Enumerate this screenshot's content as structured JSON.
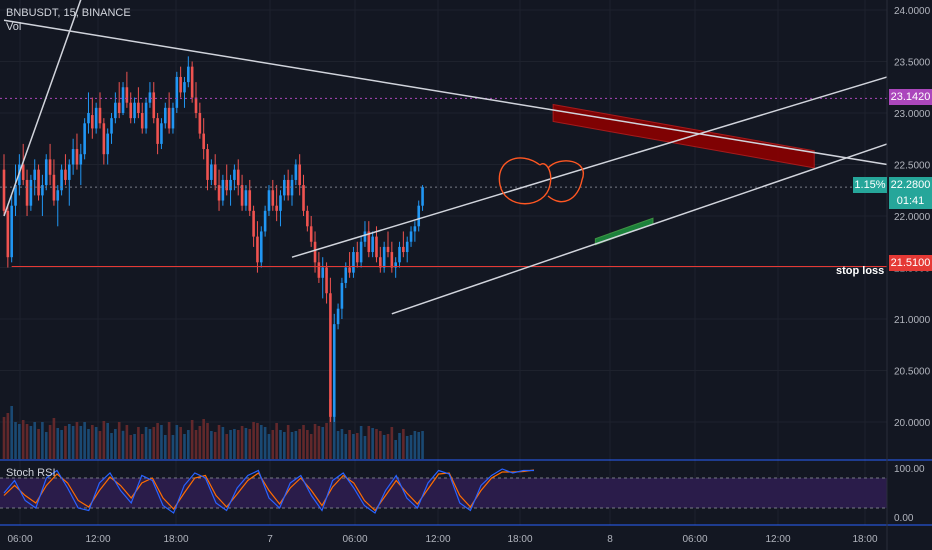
{
  "header": {
    "symbol_line": "BNBUSDT, 15, BINANCE",
    "volume_label": "Vol"
  },
  "rsi": {
    "label": "Stoch RSI",
    "axis": [
      "100.00",
      "0.00"
    ]
  },
  "price_axis": {
    "ticks": [
      "24.0000",
      "23.5000",
      "23.0000",
      "22.5000",
      "22.0000",
      "21.5000",
      "21.0000",
      "20.5000",
      "20.0000"
    ]
  },
  "time_axis": {
    "ticks": [
      "06:00",
      "12:00",
      "18:00",
      "7",
      "06:00",
      "12:00",
      "18:00",
      "8",
      "06:00",
      "12:00",
      "18:00"
    ]
  },
  "tags": {
    "purple_level": "23.1420",
    "current_price": "22.2800",
    "change_pct": "1.15%",
    "countdown": "01:41",
    "stop_level": "21.5100",
    "stop_text": "stop loss"
  },
  "colors": {
    "background": "#131722",
    "up": "#2196f3",
    "down": "#ef5350",
    "purple": "#ab47bc",
    "stop": "#e53935",
    "green": "#26a69a",
    "rsi_blue": "#2962ff",
    "rsi_orange": "#ff6d00"
  },
  "chart_data": {
    "type": "candlestick",
    "symbol": "BNBUSDT",
    "interval": "15",
    "exchange": "BINANCE",
    "y_range": [
      19.7,
      24.1
    ],
    "rsi_range": [
      0,
      100
    ],
    "levels": [
      {
        "name": "purple",
        "price": 23.142
      },
      {
        "name": "current",
        "price": 22.28
      },
      {
        "name": "stop loss",
        "price": 21.51
      }
    ],
    "trendlines": [
      {
        "name": "upper-descending",
        "from": {
          "i": 0,
          "p": 23.9
        },
        "to": {
          "i": 230,
          "p": 22.5
        }
      },
      {
        "name": "channel-upper",
        "from": {
          "i": 75,
          "p": 21.6
        },
        "to": {
          "i": 230,
          "p": 23.35
        }
      },
      {
        "name": "channel-lower",
        "from": {
          "i": 101,
          "p": 21.05
        },
        "to": {
          "i": 230,
          "p": 22.7
        }
      },
      {
        "name": "left-steep",
        "from": {
          "i": 0,
          "p": 22.0
        },
        "to": {
          "i": 20,
          "p": 24.1
        }
      }
    ],
    "zones": [
      {
        "name": "red-zone",
        "color": "#8b0000",
        "from": {
          "i": 143,
          "p": 23.0
        },
        "to": {
          "i": 211,
          "p": 22.55
        }
      },
      {
        "name": "green-zone",
        "color": "#1e8e3e",
        "from": {
          "i": 154,
          "p": 21.75
        },
        "to": {
          "i": 169,
          "p": 21.95
        }
      }
    ],
    "candles": [
      [
        22.45,
        22.6,
        22.0,
        22.05
      ],
      [
        22.05,
        22.1,
        21.5,
        21.6
      ],
      [
        21.6,
        22.2,
        21.55,
        22.1
      ],
      [
        22.1,
        22.5,
        22.0,
        22.3
      ],
      [
        22.3,
        22.6,
        22.2,
        22.5
      ],
      [
        22.5,
        22.7,
        22.3,
        22.35
      ],
      [
        22.35,
        22.45,
        22.0,
        22.1
      ],
      [
        22.1,
        22.4,
        22.05,
        22.35
      ],
      [
        22.35,
        22.55,
        22.2,
        22.45
      ],
      [
        22.45,
        22.5,
        22.15,
        22.2
      ],
      [
        22.2,
        22.4,
        22.0,
        22.3
      ],
      [
        22.3,
        22.6,
        22.25,
        22.55
      ],
      [
        22.55,
        22.7,
        22.3,
        22.4
      ],
      [
        22.4,
        22.55,
        22.1,
        22.15
      ],
      [
        22.15,
        22.3,
        21.9,
        22.25
      ],
      [
        22.25,
        22.5,
        22.2,
        22.45
      ],
      [
        22.45,
        22.6,
        22.3,
        22.35
      ],
      [
        22.35,
        22.55,
        22.1,
        22.5
      ],
      [
        22.5,
        22.75,
        22.4,
        22.65
      ],
      [
        22.65,
        22.8,
        22.45,
        22.5
      ],
      [
        22.5,
        22.7,
        22.3,
        22.6
      ],
      [
        22.6,
        22.95,
        22.55,
        22.9
      ],
      [
        22.9,
        23.2,
        22.8,
        23.0
      ],
      [
        22.98,
        23.15,
        22.75,
        22.85
      ],
      [
        22.85,
        23.1,
        22.8,
        23.05
      ],
      [
        23.05,
        23.2,
        22.85,
        22.9
      ],
      [
        22.9,
        22.95,
        22.5,
        22.6
      ],
      [
        22.6,
        22.85,
        22.5,
        22.8
      ],
      [
        22.8,
        23.0,
        22.7,
        22.95
      ],
      [
        22.95,
        23.2,
        22.9,
        23.1
      ],
      [
        23.1,
        23.3,
        22.95,
        23.0
      ],
      [
        23.0,
        23.3,
        22.98,
        23.25
      ],
      [
        23.25,
        23.4,
        23.05,
        23.1
      ],
      [
        23.1,
        23.2,
        22.9,
        22.95
      ],
      [
        22.95,
        23.15,
        22.9,
        23.1
      ],
      [
        23.1,
        23.25,
        22.95,
        23.0
      ],
      [
        23.0,
        23.1,
        22.8,
        22.85
      ],
      [
        22.85,
        23.15,
        22.8,
        23.1
      ],
      [
        23.1,
        23.3,
        23.05,
        23.2
      ],
      [
        23.2,
        23.3,
        22.9,
        22.95
      ],
      [
        22.95,
        23.0,
        22.6,
        22.7
      ],
      [
        22.7,
        22.95,
        22.65,
        22.9
      ],
      [
        22.9,
        23.1,
        22.85,
        23.05
      ],
      [
        23.05,
        23.2,
        22.8,
        22.85
      ],
      [
        22.85,
        23.1,
        22.8,
        23.05
      ],
      [
        23.05,
        23.4,
        23.0,
        23.35
      ],
      [
        23.35,
        23.45,
        23.15,
        23.2
      ],
      [
        23.2,
        23.35,
        23.05,
        23.3
      ],
      [
        23.3,
        23.55,
        23.25,
        23.45
      ],
      [
        23.45,
        23.5,
        23.1,
        23.15
      ],
      [
        23.15,
        23.3,
        22.95,
        23.0
      ],
      [
        23.0,
        23.1,
        22.75,
        22.8
      ],
      [
        22.8,
        22.95,
        22.55,
        22.65
      ],
      [
        22.65,
        22.7,
        22.25,
        22.35
      ],
      [
        22.35,
        22.55,
        22.3,
        22.5
      ],
      [
        22.5,
        22.6,
        22.25,
        22.3
      ],
      [
        22.3,
        22.45,
        22.05,
        22.15
      ],
      [
        22.15,
        22.4,
        22.1,
        22.35
      ],
      [
        22.35,
        22.5,
        22.2,
        22.25
      ],
      [
        22.25,
        22.4,
        22.1,
        22.35
      ],
      [
        22.35,
        22.5,
        22.25,
        22.45
      ],
      [
        22.45,
        22.55,
        22.2,
        22.3
      ],
      [
        22.3,
        22.4,
        22.05,
        22.1
      ],
      [
        22.1,
        22.3,
        22.05,
        22.25
      ],
      [
        22.25,
        22.35,
        22.0,
        22.05
      ],
      [
        22.05,
        22.1,
        21.7,
        21.8
      ],
      [
        21.8,
        21.95,
        21.45,
        21.55
      ],
      [
        21.55,
        21.9,
        21.5,
        21.85
      ],
      [
        21.85,
        22.1,
        21.8,
        22.05
      ],
      [
        22.05,
        22.3,
        22.0,
        22.25
      ],
      [
        22.25,
        22.35,
        22.05,
        22.1
      ],
      [
        22.1,
        22.3,
        21.95,
        22.05
      ],
      [
        22.05,
        22.25,
        21.9,
        22.2
      ],
      [
        22.2,
        22.4,
        22.15,
        22.35
      ],
      [
        22.35,
        22.45,
        22.15,
        22.2
      ],
      [
        22.2,
        22.4,
        22.1,
        22.35
      ],
      [
        22.35,
        22.55,
        22.3,
        22.5
      ],
      [
        22.5,
        22.6,
        22.2,
        22.3
      ],
      [
        22.3,
        22.4,
        22.0,
        22.05
      ],
      [
        22.05,
        22.1,
        21.85,
        21.9
      ],
      [
        21.9,
        22.0,
        21.7,
        21.75
      ],
      [
        21.75,
        21.85,
        21.45,
        21.55
      ],
      [
        21.55,
        21.65,
        21.35,
        21.4
      ],
      [
        21.4,
        21.6,
        21.2,
        21.5
      ],
      [
        21.5,
        21.55,
        21.15,
        21.25
      ],
      [
        21.25,
        21.4,
        20.0,
        20.05
      ],
      [
        20.05,
        21.05,
        20.0,
        20.95
      ],
      [
        20.95,
        21.15,
        20.9,
        21.1
      ],
      [
        21.1,
        21.4,
        21.0,
        21.35
      ],
      [
        21.35,
        21.55,
        21.3,
        21.5
      ],
      [
        21.5,
        21.65,
        21.4,
        21.45
      ],
      [
        21.45,
        21.7,
        21.4,
        21.65
      ],
      [
        21.65,
        21.75,
        21.5,
        21.55
      ],
      [
        21.55,
        21.8,
        21.5,
        21.75
      ],
      [
        21.75,
        21.95,
        21.7,
        21.85
      ],
      [
        21.85,
        21.95,
        21.6,
        21.65
      ],
      [
        21.65,
        21.85,
        21.6,
        21.8
      ],
      [
        21.8,
        21.9,
        21.55,
        21.6
      ],
      [
        21.6,
        21.7,
        21.45,
        21.5
      ],
      [
        21.5,
        21.75,
        21.45,
        21.7
      ],
      [
        21.7,
        21.85,
        21.6,
        21.65
      ],
      [
        21.65,
        21.75,
        21.45,
        21.5
      ],
      [
        21.5,
        21.6,
        21.4,
        21.55
      ],
      [
        21.55,
        21.75,
        21.5,
        21.7
      ],
      [
        21.7,
        21.85,
        21.6,
        21.65
      ],
      [
        21.65,
        21.8,
        21.55,
        21.75
      ],
      [
        21.75,
        21.9,
        21.7,
        21.85
      ],
      [
        21.85,
        21.95,
        21.75,
        21.9
      ],
      [
        21.9,
        22.15,
        21.85,
        22.1
      ],
      [
        22.1,
        22.3,
        22.05,
        22.28
      ]
    ],
    "stoch_rsi_k": [
      50,
      75,
      35,
      20,
      80,
      95,
      60,
      20,
      15,
      70,
      90,
      55,
      30,
      85,
      75,
      25,
      10,
      65,
      90,
      80,
      30,
      15,
      60,
      85,
      95,
      40,
      20,
      70,
      85,
      45,
      15,
      75,
      90,
      60,
      25,
      10,
      55,
      85,
      40,
      20,
      70,
      95,
      88,
      30,
      15,
      65,
      85,
      98,
      90,
      95,
      95
    ],
    "stoch_rsi_d": [
      45,
      65,
      45,
      30,
      65,
      88,
      70,
      35,
      22,
      55,
      82,
      65,
      40,
      70,
      80,
      40,
      18,
      50,
      80,
      85,
      45,
      22,
      48,
      75,
      90,
      55,
      28,
      60,
      80,
      55,
      25,
      62,
      85,
      70,
      35,
      15,
      45,
      75,
      50,
      28,
      58,
      88,
      90,
      45,
      22,
      55,
      80,
      92,
      92,
      93,
      96
    ]
  }
}
